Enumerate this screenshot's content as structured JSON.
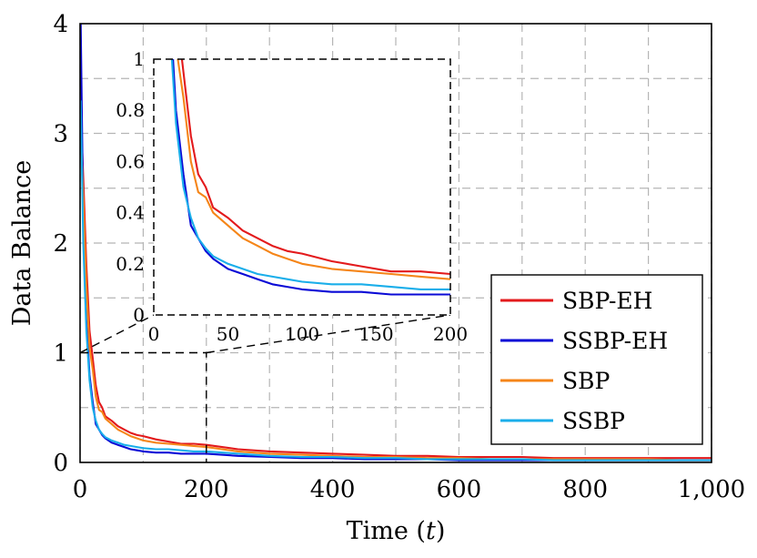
{
  "chart_data": {
    "type": "line",
    "xlabel": "Time (t)",
    "ylabel": "Data Balance",
    "xlim": [
      0,
      1000
    ],
    "ylim": [
      0,
      4
    ],
    "xticks": [
      "0",
      "200",
      "400",
      "600",
      "800",
      "1,000"
    ],
    "yticks": [
      "0",
      "1",
      "2",
      "3",
      "4"
    ],
    "grid": true,
    "legend_position": "bottom-right",
    "series": [
      {
        "name": "SBP-EH",
        "color": "#e31a1c",
        "x": [
          1,
          5,
          10,
          15,
          20,
          25,
          30,
          35,
          40,
          50,
          60,
          70,
          80,
          90,
          100,
          120,
          140,
          160,
          180,
          200,
          250,
          300,
          350,
          400,
          450,
          500,
          550,
          600,
          650,
          700,
          750,
          800,
          850,
          900,
          950,
          1000
        ],
        "y": [
          3.2,
          2.6,
          1.8,
          1.2,
          0.95,
          0.7,
          0.55,
          0.5,
          0.42,
          0.38,
          0.33,
          0.3,
          0.27,
          0.25,
          0.24,
          0.21,
          0.19,
          0.17,
          0.17,
          0.16,
          0.12,
          0.1,
          0.09,
          0.08,
          0.07,
          0.06,
          0.06,
          0.05,
          0.05,
          0.05,
          0.04,
          0.04,
          0.04,
          0.04,
          0.04,
          0.04
        ]
      },
      {
        "name": "SSBP-EH",
        "color": "#0a0ad6",
        "x": [
          1,
          5,
          10,
          15,
          20,
          25,
          30,
          35,
          40,
          50,
          60,
          70,
          80,
          90,
          100,
          120,
          140,
          160,
          180,
          200,
          250,
          300,
          350,
          400,
          450,
          500,
          550,
          600,
          650,
          700,
          750,
          800,
          850,
          900,
          950,
          1000
        ],
        "y": [
          4.0,
          2.2,
          1.3,
          0.8,
          0.55,
          0.35,
          0.3,
          0.25,
          0.22,
          0.18,
          0.16,
          0.14,
          0.12,
          0.11,
          0.1,
          0.09,
          0.09,
          0.08,
          0.08,
          0.08,
          0.06,
          0.05,
          0.04,
          0.04,
          0.03,
          0.03,
          0.03,
          0.02,
          0.02,
          0.02,
          0.02,
          0.02,
          0.02,
          0.02,
          0.02,
          0.02
        ]
      },
      {
        "name": "SBP",
        "color": "#f58518",
        "x": [
          1,
          5,
          10,
          15,
          20,
          25,
          30,
          35,
          40,
          50,
          60,
          70,
          80,
          90,
          100,
          120,
          140,
          160,
          180,
          200,
          250,
          300,
          350,
          400,
          450,
          500,
          550,
          600,
          650,
          700,
          750,
          800,
          850,
          900,
          950,
          1000
        ],
        "y": [
          3.0,
          2.4,
          1.6,
          1.05,
          0.85,
          0.6,
          0.48,
          0.46,
          0.4,
          0.35,
          0.3,
          0.27,
          0.24,
          0.22,
          0.2,
          0.18,
          0.17,
          0.16,
          0.15,
          0.14,
          0.1,
          0.08,
          0.07,
          0.06,
          0.05,
          0.05,
          0.04,
          0.04,
          0.03,
          0.03,
          0.03,
          0.03,
          0.03,
          0.03,
          0.02,
          0.02
        ]
      },
      {
        "name": "SSBP",
        "color": "#1aaeea",
        "x": [
          1,
          5,
          10,
          15,
          20,
          25,
          30,
          35,
          40,
          50,
          60,
          70,
          80,
          90,
          100,
          120,
          140,
          160,
          180,
          200,
          250,
          300,
          350,
          400,
          450,
          500,
          550,
          600,
          650,
          700,
          750,
          800,
          850,
          900,
          950,
          1000
        ],
        "y": [
          3.3,
          2.0,
          1.2,
          0.75,
          0.5,
          0.38,
          0.3,
          0.26,
          0.23,
          0.2,
          0.18,
          0.16,
          0.15,
          0.14,
          0.13,
          0.12,
          0.12,
          0.11,
          0.1,
          0.1,
          0.08,
          0.06,
          0.05,
          0.05,
          0.04,
          0.04,
          0.03,
          0.03,
          0.03,
          0.03,
          0.02,
          0.02,
          0.02,
          0.02,
          0.02,
          0.02
        ]
      }
    ],
    "inset": {
      "xlim": [
        0,
        200
      ],
      "ylim": [
        0,
        1
      ],
      "xticks": [
        "0",
        "50",
        "100",
        "150",
        "200"
      ],
      "yticks": [
        "0",
        "0.2",
        "0.4",
        "0.6",
        "0.8",
        "1"
      ]
    }
  }
}
